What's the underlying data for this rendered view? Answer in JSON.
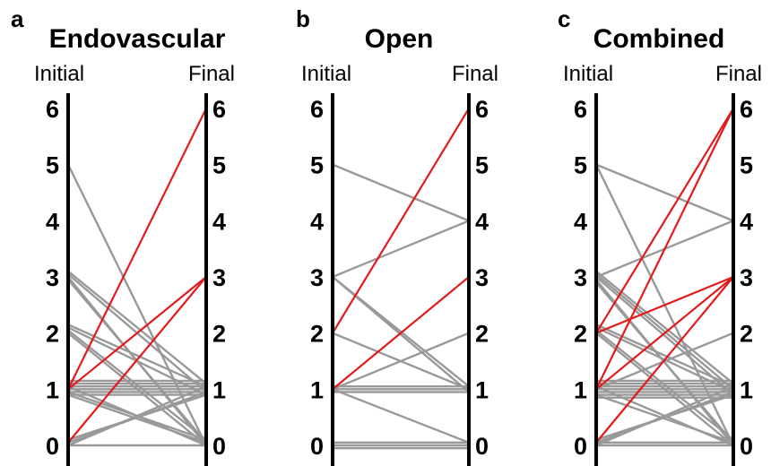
{
  "chart_data": [
    {
      "type": "line",
      "panel_label": "a",
      "title": "Endovascular",
      "left_axis_label": "Initial",
      "right_axis_label": "Final",
      "ticks": [
        "0",
        "1",
        "2",
        "3",
        "4",
        "5",
        "6"
      ],
      "ylim": [
        0,
        6
      ],
      "colors": {
        "unchanged_or_improved": "#999999",
        "worsened": "#e31a1c"
      },
      "segments": [
        {
          "initial": 5,
          "final": 0,
          "worsened": false
        },
        {
          "initial": 3.1,
          "final": 1.1,
          "worsened": false
        },
        {
          "initial": 3.05,
          "final": 0.95,
          "worsened": false
        },
        {
          "initial": 3.0,
          "final": 0.0,
          "worsened": false
        },
        {
          "initial": 2.95,
          "final": 0.05,
          "worsened": false
        },
        {
          "initial": 2.15,
          "final": 1.05,
          "worsened": false
        },
        {
          "initial": 2.1,
          "final": 0.9,
          "worsened": false
        },
        {
          "initial": 2.05,
          "final": 0.1,
          "worsened": false
        },
        {
          "initial": 2.0,
          "final": 0.0,
          "worsened": false
        },
        {
          "initial": 1.15,
          "final": 1.15,
          "worsened": false
        },
        {
          "initial": 1.1,
          "final": 1.1,
          "worsened": false
        },
        {
          "initial": 1.05,
          "final": 1.05,
          "worsened": false
        },
        {
          "initial": 1.0,
          "final": 1.0,
          "worsened": false
        },
        {
          "initial": 0.95,
          "final": 0.95,
          "worsened": false
        },
        {
          "initial": 0.9,
          "final": 0.9,
          "worsened": false
        },
        {
          "initial": 1.05,
          "final": 0.0,
          "worsened": false
        },
        {
          "initial": 0.9,
          "final": 0.05,
          "worsened": false
        },
        {
          "initial": 0.95,
          "final": 0.1,
          "worsened": false
        },
        {
          "initial": 0.0,
          "final": 1.05,
          "worsened": false
        },
        {
          "initial": 0.05,
          "final": 0.95,
          "worsened": false
        },
        {
          "initial": 0.1,
          "final": 0.9,
          "worsened": false
        },
        {
          "initial": 0.0,
          "final": 0.0,
          "worsened": false
        },
        {
          "initial": 1.0,
          "final": 6,
          "worsened": true
        },
        {
          "initial": 1.0,
          "final": 3,
          "worsened": true
        },
        {
          "initial": 0.05,
          "final": 3,
          "worsened": true
        }
      ]
    },
    {
      "type": "line",
      "panel_label": "b",
      "title": "Open",
      "left_axis_label": "Initial",
      "right_axis_label": "Final",
      "ticks": [
        "0",
        "1",
        "2",
        "3",
        "4",
        "5",
        "6"
      ],
      "ylim": [
        0,
        6
      ],
      "colors": {
        "unchanged_or_improved": "#999999",
        "worsened": "#e31a1c"
      },
      "segments": [
        {
          "initial": 5,
          "final": 4,
          "worsened": false
        },
        {
          "initial": 3,
          "final": 4,
          "worsened": false
        },
        {
          "initial": 3,
          "final": 1.05,
          "worsened": false
        },
        {
          "initial": 3,
          "final": 0.95,
          "worsened": false
        },
        {
          "initial": 2,
          "final": 1.0,
          "worsened": false
        },
        {
          "initial": 1.0,
          "final": 2,
          "worsened": false
        },
        {
          "initial": 1.05,
          "final": 1.05,
          "worsened": false
        },
        {
          "initial": 1.0,
          "final": 1.0,
          "worsened": false
        },
        {
          "initial": 0.95,
          "final": 0.95,
          "worsened": false
        },
        {
          "initial": 1.0,
          "final": 0.05,
          "worsened": false
        },
        {
          "initial": 0.05,
          "final": 0.05,
          "worsened": false
        },
        {
          "initial": 0.0,
          "final": 0.0,
          "worsened": false
        },
        {
          "initial": -0.05,
          "final": -0.05,
          "worsened": false
        },
        {
          "initial": 2,
          "final": 6,
          "worsened": true
        },
        {
          "initial": 1.0,
          "final": 3,
          "worsened": true
        }
      ]
    },
    {
      "type": "line",
      "panel_label": "c",
      "title": "Combined",
      "left_axis_label": "Initial",
      "right_axis_label": "Final",
      "ticks": [
        "0",
        "1",
        "2",
        "3",
        "4",
        "5",
        "6"
      ],
      "ylim": [
        0,
        6
      ],
      "colors": {
        "unchanged_or_improved": "#999999",
        "worsened": "#e31a1c"
      },
      "segments": [
        {
          "initial": 5,
          "final": 4,
          "worsened": false
        },
        {
          "initial": 5,
          "final": 0,
          "worsened": false
        },
        {
          "initial": 3,
          "final": 4,
          "worsened": false
        },
        {
          "initial": 3.1,
          "final": 1.1,
          "worsened": false
        },
        {
          "initial": 3.05,
          "final": 1.0,
          "worsened": false
        },
        {
          "initial": 3.0,
          "final": 0.9,
          "worsened": false
        },
        {
          "initial": 2.95,
          "final": 0.0,
          "worsened": false
        },
        {
          "initial": 2.9,
          "final": 0.05,
          "worsened": false
        },
        {
          "initial": 2.15,
          "final": 1.05,
          "worsened": false
        },
        {
          "initial": 2.1,
          "final": 0.95,
          "worsened": false
        },
        {
          "initial": 2.05,
          "final": 0.1,
          "worsened": false
        },
        {
          "initial": 2.0,
          "final": 0.0,
          "worsened": false
        },
        {
          "initial": 1.0,
          "final": 2,
          "worsened": false
        },
        {
          "initial": 1.15,
          "final": 1.15,
          "worsened": false
        },
        {
          "initial": 1.1,
          "final": 1.1,
          "worsened": false
        },
        {
          "initial": 1.05,
          "final": 1.05,
          "worsened": false
        },
        {
          "initial": 1.0,
          "final": 1.0,
          "worsened": false
        },
        {
          "initial": 0.95,
          "final": 0.95,
          "worsened": false
        },
        {
          "initial": 0.9,
          "final": 0.9,
          "worsened": false
        },
        {
          "initial": 0.85,
          "final": 0.85,
          "worsened": false
        },
        {
          "initial": 1.05,
          "final": 0.0,
          "worsened": false
        },
        {
          "initial": 0.9,
          "final": 0.05,
          "worsened": false
        },
        {
          "initial": 0.0,
          "final": 1.05,
          "worsened": false
        },
        {
          "initial": 0.05,
          "final": 0.95,
          "worsened": false
        },
        {
          "initial": 0.1,
          "final": 0.9,
          "worsened": false
        },
        {
          "initial": 0.0,
          "final": 0.0,
          "worsened": false
        },
        {
          "initial": 0.05,
          "final": 0.05,
          "worsened": false
        },
        {
          "initial": 2,
          "final": 6,
          "worsened": true
        },
        {
          "initial": 1.0,
          "final": 6,
          "worsened": true
        },
        {
          "initial": 2,
          "final": 3,
          "worsened": true
        },
        {
          "initial": 1.0,
          "final": 3,
          "worsened": true
        },
        {
          "initial": 0.05,
          "final": 3,
          "worsened": true
        }
      ]
    }
  ]
}
